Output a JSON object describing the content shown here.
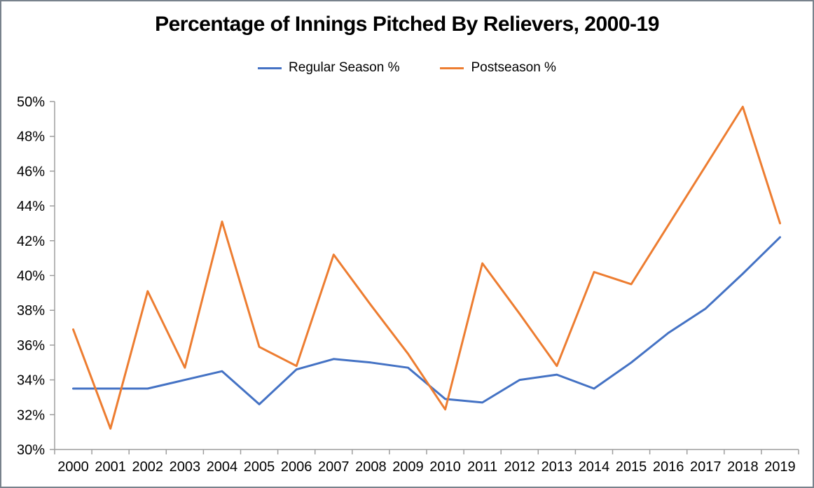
{
  "chart_data": {
    "type": "line",
    "title": "Percentage of Innings Pitched By Relievers, 2000-19",
    "categories": [
      "2000",
      "2001",
      "2002",
      "2003",
      "2004",
      "2005",
      "2006",
      "2007",
      "2008",
      "2009",
      "2010",
      "2011",
      "2012",
      "2013",
      "2014",
      "2015",
      "2016",
      "2017",
      "2018",
      "2019"
    ],
    "series": [
      {
        "name": "Regular Season %",
        "color": "#4472C4",
        "values": [
          33.5,
          33.5,
          33.5,
          34.0,
          34.5,
          32.6,
          34.6,
          35.2,
          35.0,
          34.7,
          32.9,
          32.7,
          34.0,
          34.3,
          33.5,
          35.0,
          36.7,
          38.1,
          40.1,
          42.2
        ]
      },
      {
        "name": "Postseason %",
        "color": "#ED7D31",
        "values": [
          36.9,
          31.2,
          39.1,
          34.7,
          43.1,
          35.9,
          34.8,
          41.2,
          38.3,
          35.5,
          32.3,
          40.7,
          37.8,
          34.8,
          40.2,
          39.5,
          42.9,
          46.3,
          49.7,
          43.0
        ]
      }
    ],
    "xlabel": "",
    "ylabel": "",
    "ylim": [
      30,
      50
    ],
    "ytick_step": 2,
    "ytick_labels": [
      "30%",
      "32%",
      "34%",
      "36%",
      "38%",
      "40%",
      "42%",
      "44%",
      "46%",
      "48%",
      "50%"
    ],
    "grid": false,
    "legend_position": "top",
    "axis_color": "#9E9E9E",
    "label_color": "#000000"
  }
}
